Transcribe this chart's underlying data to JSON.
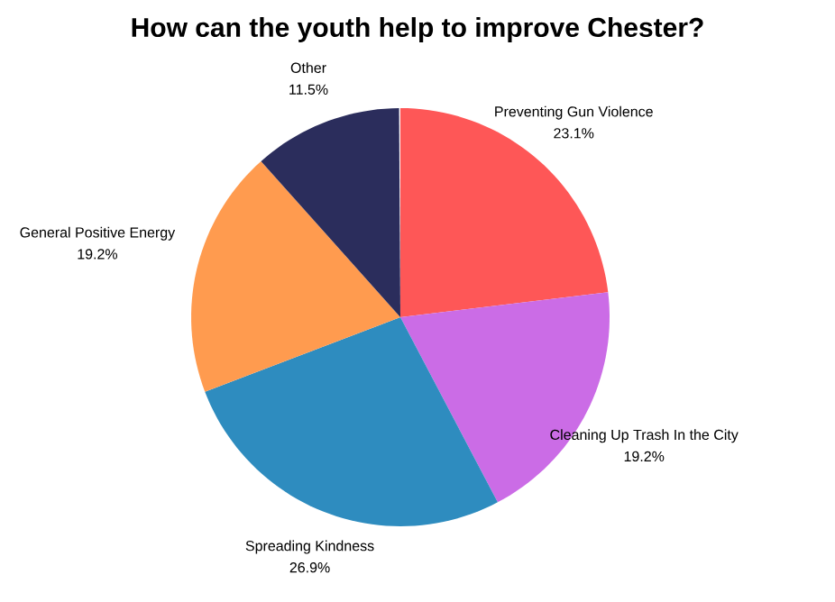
{
  "chart_data": {
    "type": "pie",
    "title": "How can the youth help to improve Chester?",
    "categories": [
      "Preventing Gun Violence",
      "Cleaning Up Trash In the City",
      "Spreading Kindness",
      "General Positive Energy",
      "Other"
    ],
    "values": [
      23.1,
      19.2,
      26.9,
      19.2,
      11.5
    ],
    "value_labels": [
      "23.1%",
      "19.2%",
      "26.9%",
      "19.2%",
      "11.5%"
    ],
    "colors": [
      "#fe5757",
      "#cb6ce6",
      "#2e8cbf",
      "#ff9b4f",
      "#2b2d5c"
    ]
  }
}
